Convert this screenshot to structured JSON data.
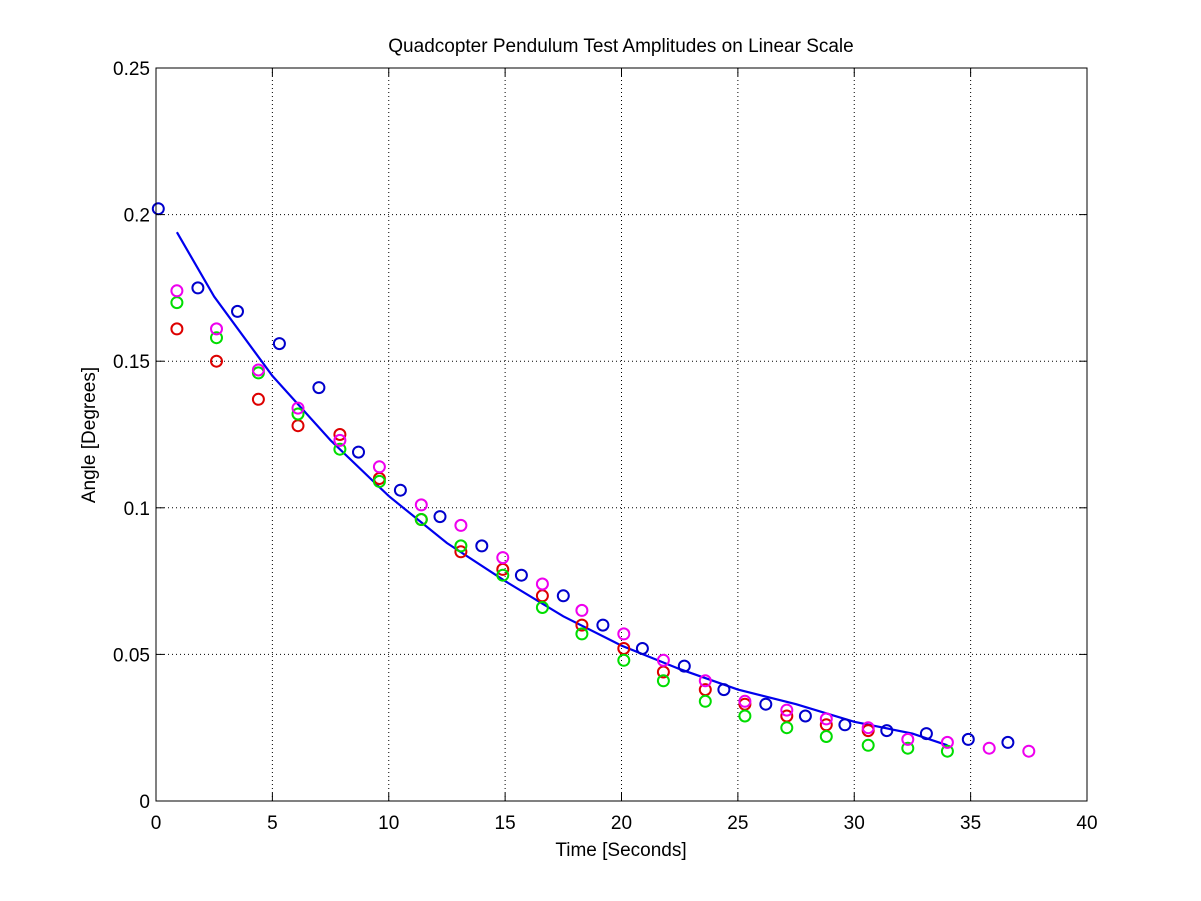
{
  "chart_data": {
    "type": "scatter",
    "title": "Quadcopter Pendulum Test Amplitudes on Linear Scale",
    "xlabel": "Time [Seconds]",
    "ylabel": "Angle [Degrees]",
    "xlim": [
      0,
      40
    ],
    "ylim": [
      0,
      0.25
    ],
    "xticks": [
      "0",
      "5",
      "10",
      "15",
      "20",
      "25",
      "30",
      "35",
      "40"
    ],
    "yticks": [
      "0",
      "0.05",
      "0.1",
      "0.15",
      "0.2",
      "0.25"
    ],
    "grid": true,
    "marker": "circle",
    "series": [
      {
        "color": "#0000cc",
        "x": [
          0.1,
          1.8,
          3.5,
          5.3,
          7.0,
          8.7,
          10.5,
          12.2,
          14.0,
          15.7,
          17.5,
          19.2,
          20.9,
          22.7,
          24.4,
          26.2,
          27.9,
          29.6,
          31.4,
          33.1,
          34.9,
          36.6
        ],
        "y": [
          0.202,
          0.175,
          0.167,
          0.156,
          0.141,
          0.119,
          0.106,
          0.097,
          0.087,
          0.077,
          0.07,
          0.06,
          0.052,
          0.046,
          0.038,
          0.033,
          0.029,
          0.026,
          0.024,
          0.023,
          0.021,
          0.02
        ]
      },
      {
        "color": "#dd0000",
        "x": [
          0.9,
          2.6,
          4.4,
          6.1,
          7.9,
          9.6,
          11.4,
          13.1,
          14.9,
          16.6,
          18.3,
          20.1,
          21.8,
          23.6,
          25.3,
          27.1,
          28.8,
          30.6
        ],
        "y": [
          0.161,
          0.15,
          0.137,
          0.128,
          0.125,
          0.11,
          0.096,
          0.085,
          0.079,
          0.07,
          0.06,
          0.052,
          0.044,
          0.038,
          0.033,
          0.029,
          0.026,
          0.024
        ]
      },
      {
        "color": "#00dd00",
        "x": [
          0.9,
          2.6,
          4.4,
          6.1,
          7.9,
          9.6,
          11.4,
          13.1,
          14.9,
          16.6,
          18.3,
          20.1,
          21.8,
          23.6,
          25.3,
          27.1,
          28.8,
          30.6,
          32.3,
          34.0
        ],
        "y": [
          0.17,
          0.158,
          0.146,
          0.132,
          0.12,
          0.109,
          0.096,
          0.087,
          0.077,
          0.066,
          0.057,
          0.048,
          0.041,
          0.034,
          0.029,
          0.025,
          0.022,
          0.019,
          0.018,
          0.017
        ]
      },
      {
        "color": "#ee00ee",
        "x": [
          0.9,
          2.6,
          4.4,
          6.1,
          7.9,
          9.6,
          11.4,
          13.1,
          14.9,
          16.6,
          18.3,
          20.1,
          21.8,
          23.6,
          25.3,
          27.1,
          28.8,
          30.6,
          32.3,
          34.0,
          35.8,
          37.5
        ],
        "y": [
          0.174,
          0.161,
          0.147,
          0.134,
          0.123,
          0.114,
          0.101,
          0.094,
          0.083,
          0.074,
          0.065,
          0.057,
          0.048,
          0.041,
          0.034,
          0.031,
          0.028,
          0.025,
          0.021,
          0.02,
          0.018,
          0.017
        ]
      }
    ],
    "fit_curve": {
      "color": "#0000ee",
      "type": "exponential-decay",
      "x": [
        0.9,
        2.5,
        5,
        7.5,
        10,
        12.5,
        15,
        17.5,
        20,
        22.5,
        25,
        27.5,
        30,
        32.5,
        34.0
      ],
      "y": [
        0.194,
        0.172,
        0.145,
        0.123,
        0.104,
        0.088,
        0.075,
        0.063,
        0.053,
        0.045,
        0.038,
        0.033,
        0.027,
        0.023,
        0.019
      ]
    }
  }
}
